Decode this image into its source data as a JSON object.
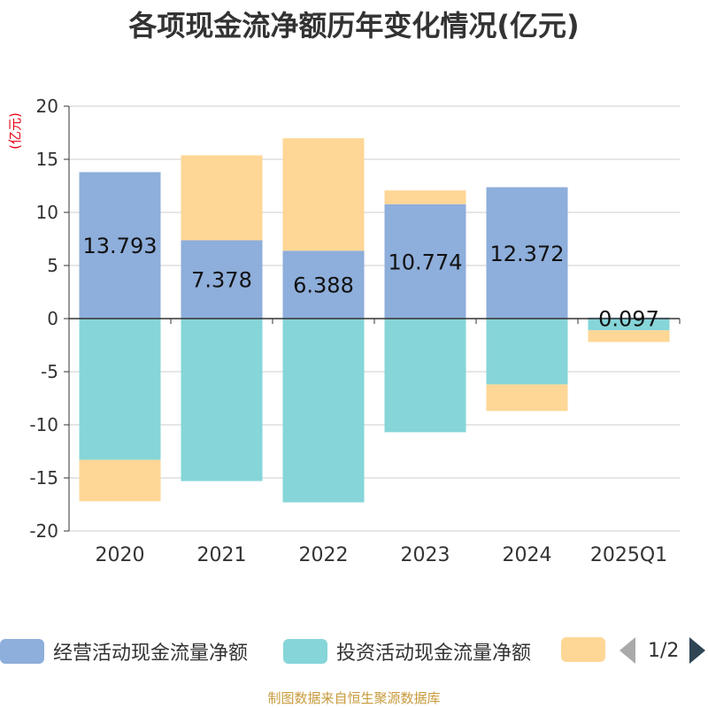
{
  "chart_data": {
    "type": "bar",
    "stacked": true,
    "title": "各项现金流净额历年变化情况(亿元)",
    "ylabel": "(亿元)",
    "xlabel": "",
    "ylim": [
      -20,
      20
    ],
    "yticks": [
      20,
      15,
      10,
      5,
      0,
      -5,
      -10,
      -15,
      -20
    ],
    "grid": true,
    "categories": [
      "2020",
      "2021",
      "2022",
      "2023",
      "2024",
      "2025Q1"
    ],
    "series": [
      {
        "name": "经营活动现金流量净额",
        "color": "#8eaedb",
        "values": [
          13.793,
          7.378,
          6.388,
          10.774,
          12.372,
          0.097
        ],
        "labels": [
          "13.793",
          "7.378",
          "6.388",
          "10.774",
          "12.372",
          "0.097"
        ]
      },
      {
        "name": "投资活动现金流量净额",
        "color": "#86d5d8",
        "values": [
          -13.3,
          -15.3,
          -17.3,
          -10.7,
          -6.2,
          -1.1
        ]
      },
      {
        "name": "",
        "color": "#fed796",
        "values": [
          -3.9,
          8.0,
          10.6,
          1.3,
          -2.5,
          -1.1
        ]
      }
    ]
  },
  "legend": {
    "items": [
      {
        "label": "经营活动现金流量净额",
        "color": "#8eaedb"
      },
      {
        "label": "投资活动现金流量净额",
        "color": "#86d5d8"
      },
      {
        "label": "",
        "color": "#fed796"
      }
    ],
    "page": "1/2"
  },
  "source": "制图数据来自恒生聚源数据库"
}
